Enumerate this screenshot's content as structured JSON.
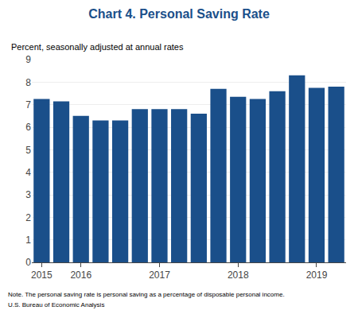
{
  "chart_data": {
    "type": "bar",
    "title": "Chart 4. Personal Saving Rate",
    "subtitle": "Percent, seasonally adjusted at annual rates",
    "annotations": [
      "Note. The personal saving rate is personal saving as a percentage of disposable personal income.",
      "U.S. Bureau of Economic Analysis"
    ],
    "categories": [
      "2015",
      null,
      "2016",
      null,
      null,
      null,
      "2017",
      null,
      null,
      null,
      "2018",
      null,
      null,
      null,
      "2019",
      null
    ],
    "values": [
      7.25,
      7.15,
      6.5,
      6.3,
      6.3,
      6.8,
      6.8,
      6.8,
      6.6,
      7.7,
      7.35,
      7.25,
      7.6,
      8.3,
      7.75,
      7.8
    ],
    "color": "#1A4F8A",
    "ylim": [
      0,
      9
    ],
    "yticks": [
      0,
      1,
      2,
      3,
      4,
      5,
      6,
      7,
      8,
      9
    ],
    "grid": true
  }
}
